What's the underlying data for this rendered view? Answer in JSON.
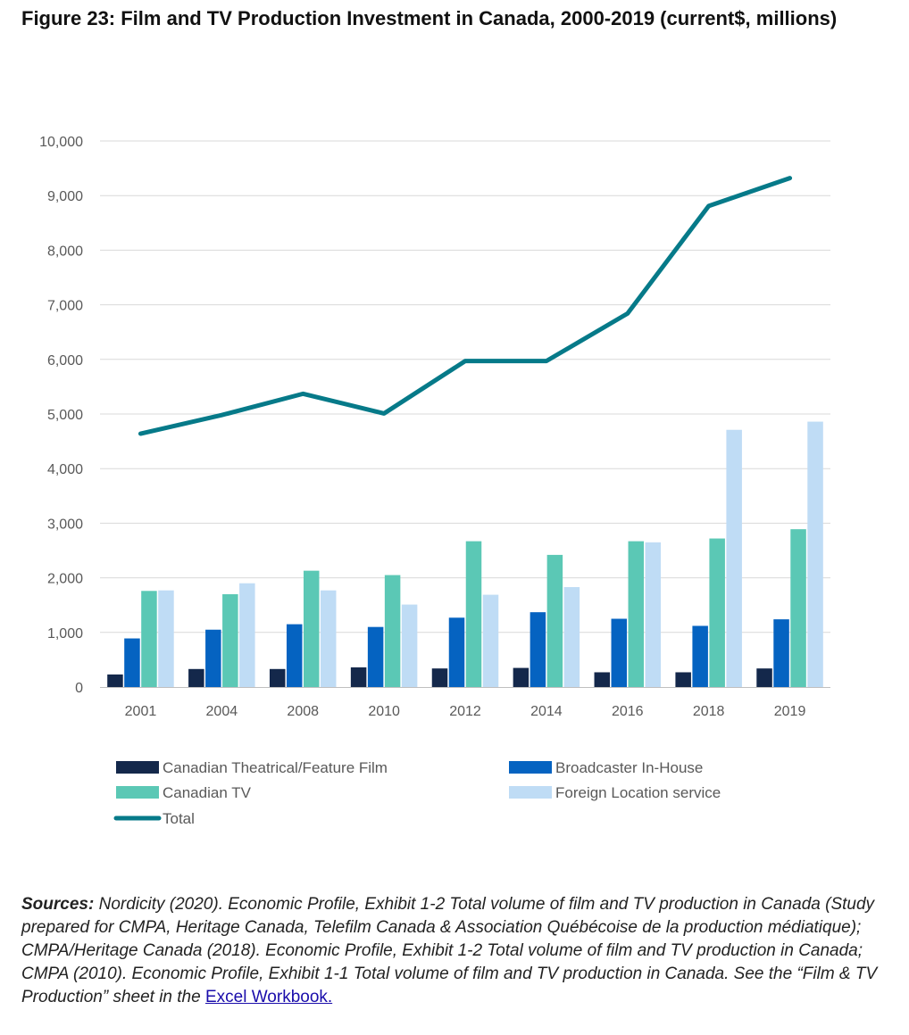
{
  "title": "Figure 23: Film and TV Production Investment in Canada, 2000-2019 (current$, millions)",
  "chart_data": {
    "type": "bar",
    "categories": [
      "2001",
      "2004",
      "2008",
      "2010",
      "2012",
      "2014",
      "2016",
      "2018",
      "2019"
    ],
    "series": [
      {
        "name": "Canadian Theatrical/Feature Film",
        "kind": "bar",
        "color": "#14284b",
        "values": [
          230,
          330,
          330,
          360,
          340,
          350,
          270,
          270,
          340
        ]
      },
      {
        "name": "Broadcaster In-House",
        "kind": "bar",
        "color": "#0563c1",
        "values": [
          890,
          1050,
          1150,
          1100,
          1270,
          1370,
          1250,
          1120,
          1240
        ]
      },
      {
        "name": "Canadian TV",
        "kind": "bar",
        "color": "#5bc8b5",
        "values": [
          1760,
          1700,
          2130,
          2050,
          2670,
          2420,
          2670,
          2720,
          2890
        ]
      },
      {
        "name": "Foreign Location service",
        "kind": "bar",
        "color": "#bfdcf5",
        "values": [
          1770,
          1900,
          1770,
          1510,
          1690,
          1830,
          2650,
          4710,
          4860
        ]
      },
      {
        "name": "Total",
        "kind": "line",
        "color": "#067a89",
        "values": [
          4640,
          4980,
          5370,
          5010,
          5970,
          5970,
          6840,
          8810,
          9320
        ]
      }
    ],
    "ylim": [
      0,
      10000
    ],
    "yticks": [
      0,
      1000,
      2000,
      3000,
      4000,
      5000,
      6000,
      7000,
      8000,
      9000,
      10000
    ],
    "ytick_labels": [
      "0",
      "1,000",
      "2,000",
      "3,000",
      "4,000",
      "5,000",
      "6,000",
      "7,000",
      "8,000",
      "9,000",
      "10,000"
    ],
    "grid": true,
    "legend_position": "bottom",
    "xlabel": "",
    "ylabel": ""
  },
  "sources": {
    "label": "Sources:",
    "text": " Nordicity (2020). Economic Profile, Exhibit 1-2 Total volume of film and TV production in Canada (Study prepared for CMPA, Heritage Canada, Telefilm Canada & Association Québécoise de la production médiatique); CMPA/Heritage Canada (2018). Economic Profile, Exhibit 1-2 Total volume of film and TV production in Canada; CMPA (2010). Economic Profile, Exhibit 1-1 Total volume of film and TV production in Canada. See the “Film & TV Production” sheet in the ",
    "link_text": "Excel Workbook. "
  }
}
